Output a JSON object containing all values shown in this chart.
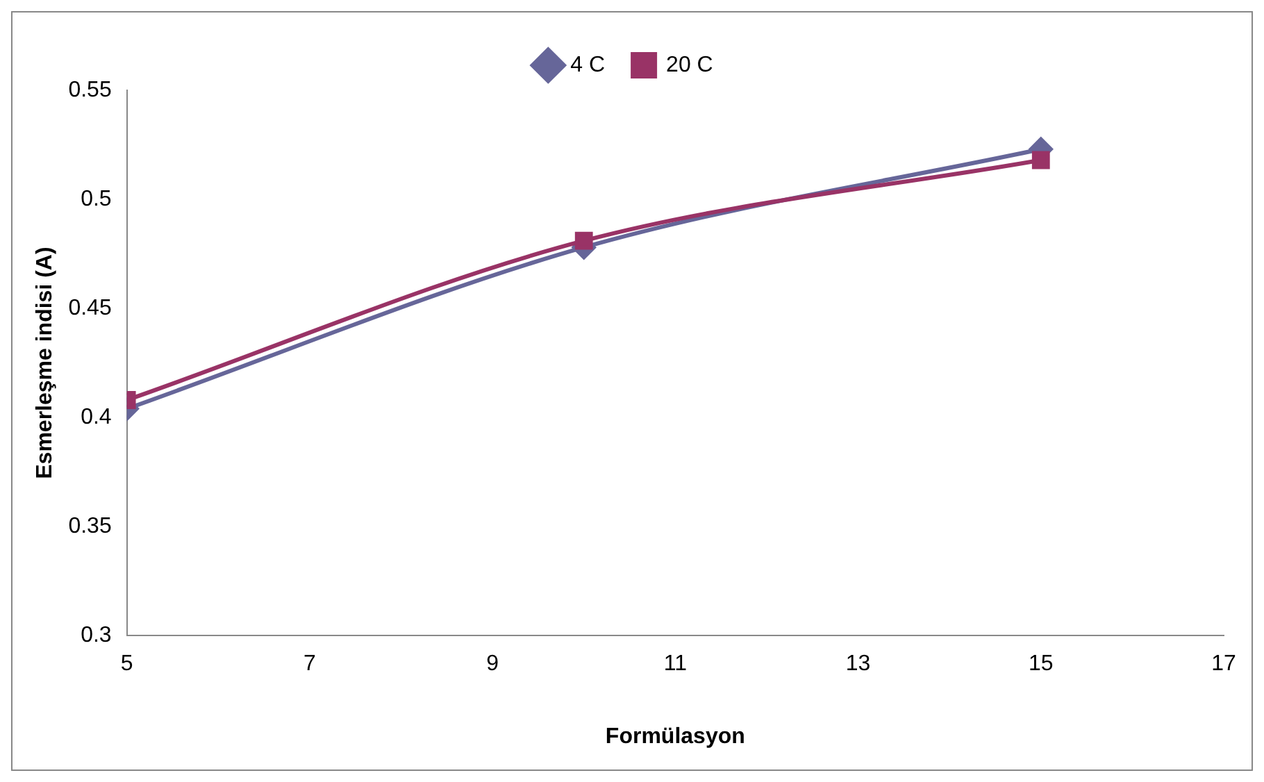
{
  "chart_data": {
    "type": "line",
    "xlabel": "Formülasyon",
    "ylabel": "Esmerleşme indisi (A)",
    "x": [
      5,
      10,
      15
    ],
    "series": [
      {
        "name": "4 C",
        "color": "#666699",
        "marker": "diamond",
        "values": [
          0.404,
          0.478,
          0.523
        ]
      },
      {
        "name": "20 C",
        "color": "#993366",
        "marker": "square",
        "values": [
          0.408,
          0.481,
          0.518
        ]
      }
    ],
    "xlim": [
      5,
      17
    ],
    "xticks": [
      5,
      7,
      9,
      11,
      13,
      15,
      17
    ],
    "ylim": [
      0.3,
      0.55
    ],
    "yticks": [
      0.3,
      0.35,
      0.4,
      0.45,
      0.5,
      0.55
    ],
    "grid": false,
    "legend": "top",
    "line_style": "solid"
  }
}
